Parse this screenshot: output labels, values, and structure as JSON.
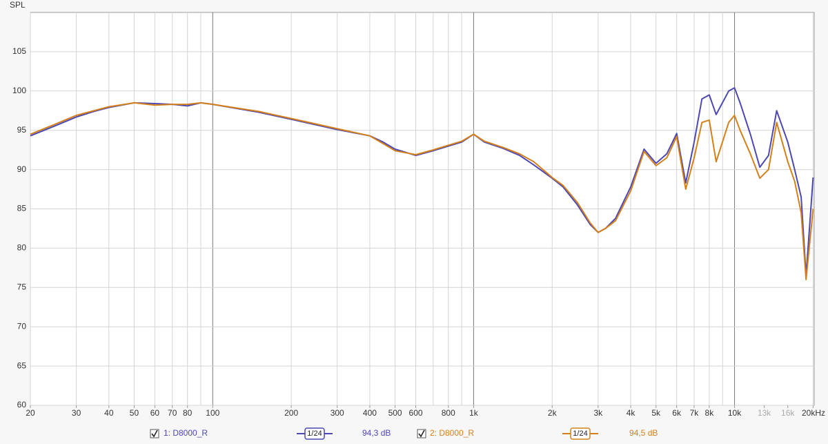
{
  "chart_data": {
    "type": "line",
    "ylabel": "SPL",
    "xscale": "log",
    "grid": true,
    "xlim": [
      20,
      20200
    ],
    "ylim": [
      60,
      110
    ],
    "yticks": [
      60,
      65,
      70,
      75,
      80,
      85,
      90,
      95,
      100,
      105
    ],
    "xticks": [
      20,
      30,
      40,
      50,
      60,
      70,
      80,
      100,
      200,
      300,
      400,
      500,
      600,
      800,
      {
        "value": 1000,
        "label": "1k"
      },
      {
        "value": 2000,
        "label": "2k"
      },
      {
        "value": 3000,
        "label": "3k"
      },
      {
        "value": 4000,
        "label": "4k"
      },
      {
        "value": 5000,
        "label": "5k"
      },
      {
        "value": 6000,
        "label": "6k"
      },
      {
        "value": 7000,
        "label": "7k"
      },
      {
        "value": 8000,
        "label": "8k"
      },
      {
        "value": 10000,
        "label": "10k"
      },
      {
        "value": 13000,
        "label": "13k",
        "color": "#aaaaaa"
      },
      {
        "value": 16000,
        "label": "16k",
        "color": "#aaaaaa"
      },
      {
        "value": 20000,
        "label": "20kHz"
      }
    ],
    "x": [
      20,
      25,
      30,
      35,
      40,
      50,
      60,
      70,
      80,
      90,
      100,
      150,
      200,
      300,
      400,
      450,
      500,
      600,
      700,
      800,
      900,
      1000,
      1100,
      1300,
      1500,
      1700,
      2000,
      2200,
      2500,
      2800,
      3000,
      3200,
      3500,
      4000,
      4500,
      5000,
      5500,
      6000,
      6500,
      7000,
      7500,
      8000,
      8500,
      9500,
      10000,
      10500,
      11500,
      12500,
      13500,
      14500,
      16000,
      17000,
      18000,
      18800,
      20000
    ],
    "series": [
      {
        "name": "1: D8000_R",
        "color": "#4b47b3",
        "smoothing": "1/24",
        "level": "94,3 dB",
        "values": [
          94.3,
          95.6,
          96.7,
          97.4,
          97.9,
          98.5,
          98.4,
          98.3,
          98.1,
          98.5,
          98.3,
          97.3,
          96.4,
          95.1,
          94.3,
          93.5,
          92.6,
          91.8,
          92.4,
          93.0,
          93.5,
          94.5,
          93.5,
          92.7,
          91.8,
          90.6,
          88.9,
          87.8,
          85.5,
          83.0,
          82.0,
          82.5,
          83.8,
          87.8,
          92.6,
          90.8,
          92.0,
          94.6,
          88.3,
          93.5,
          99.0,
          99.5,
          97.0,
          100.0,
          100.4,
          98.5,
          94.5,
          90.3,
          91.8,
          97.5,
          93.5,
          90.0,
          86.5,
          76.5,
          89.0
        ]
      },
      {
        "name": "2: D8000_R",
        "color": "#d4801a",
        "smoothing": "1/24",
        "level": "94,5 dB",
        "values": [
          94.5,
          95.8,
          96.9,
          97.5,
          98.0,
          98.5,
          98.2,
          98.3,
          98.3,
          98.5,
          98.3,
          97.4,
          96.5,
          95.2,
          94.3,
          93.3,
          92.4,
          91.9,
          92.5,
          93.1,
          93.6,
          94.5,
          93.6,
          92.8,
          92.0,
          91.0,
          89.0,
          88.0,
          85.8,
          83.2,
          82.0,
          82.5,
          83.5,
          87.3,
          92.3,
          90.5,
          91.5,
          94.2,
          87.5,
          91.5,
          96.0,
          96.3,
          91.0,
          96.0,
          96.9,
          95.0,
          92.0,
          88.9,
          90.0,
          96.0,
          91.0,
          88.5,
          84.5,
          76.0,
          85.0
        ]
      }
    ]
  }
}
